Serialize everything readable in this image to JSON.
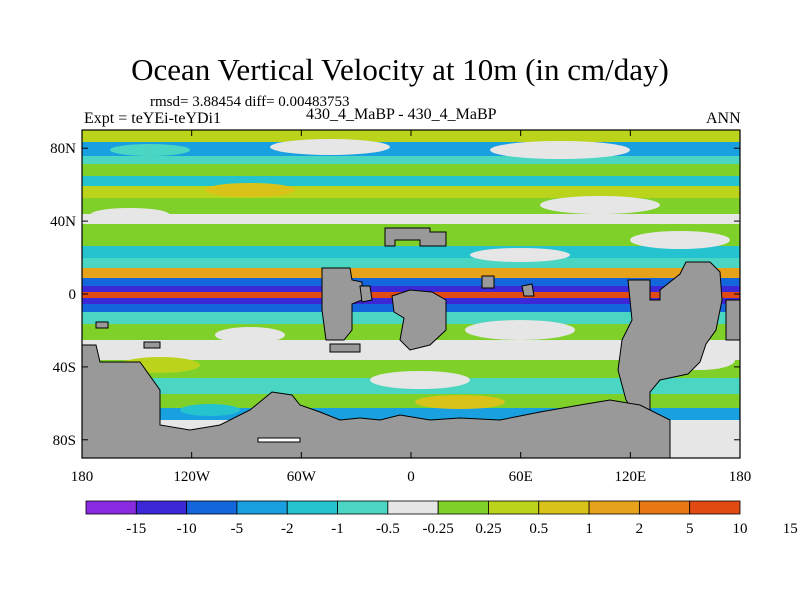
{
  "title": "Ocean Vertical Velocity at 10m (in cm/day)",
  "stats_line": "rmsd= 3.88454 diff= 0.00483753",
  "experiment_label": "Expt = teYEi-teYDi1",
  "comparison_label": "430_4_MaBP - 430_4_MaBP",
  "season": "ANN",
  "colors": {
    "land": "#999999",
    "frame": "#000000",
    "background": "#ffffff"
  },
  "map": {
    "type": "contour_map",
    "lat_ticks": [
      "80N",
      "40N",
      "0",
      "40S",
      "80S"
    ],
    "lon_ticks": [
      "180",
      "120W",
      "60W",
      "0",
      "60E",
      "120E",
      "180"
    ],
    "lat_values": [
      80,
      40,
      0,
      -40,
      -80
    ],
    "lon_values": [
      -180,
      -120,
      -60,
      0,
      60,
      120,
      180
    ],
    "lat_range": [
      -90,
      90
    ],
    "lon_range": [
      -180,
      180
    ]
  },
  "colorbar": {
    "colors": [
      "#8a2be2",
      "#3c28d6",
      "#1466dd",
      "#19a0e0",
      "#25c3cf",
      "#4ad6c2",
      "#e6e6e6",
      "#7fd12a",
      "#bcd31c",
      "#d9c31a",
      "#e6a21a",
      "#e87814",
      "#e14a12"
    ],
    "labels": [
      "-15",
      "-10",
      "-5",
      "-2",
      "-1",
      "-0.5",
      "-0.25",
      "0.25",
      "0.5",
      "1",
      "2",
      "5",
      "10",
      "15"
    ]
  }
}
